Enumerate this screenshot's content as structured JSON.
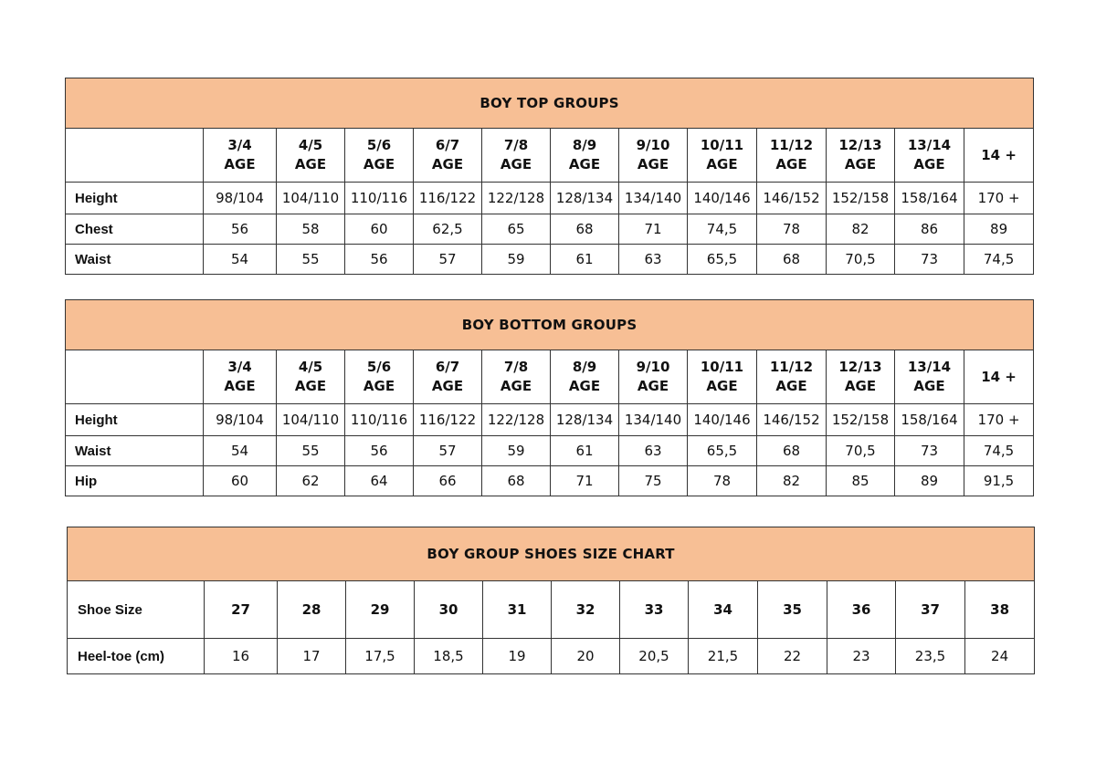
{
  "header_color": "#f7bf95",
  "top": {
    "title": "BOY TOP GROUPS",
    "columns": [
      [
        "3/4",
        "AGE"
      ],
      [
        "4/5",
        "AGE"
      ],
      [
        "5/6",
        "AGE"
      ],
      [
        "6/7",
        "AGE"
      ],
      [
        "7/8",
        "AGE"
      ],
      [
        "8/9",
        "AGE"
      ],
      [
        "9/10",
        "AGE"
      ],
      [
        "10/11",
        "AGE"
      ],
      [
        "11/12",
        "AGE"
      ],
      [
        "12/13",
        "AGE"
      ],
      [
        "13/14",
        "AGE"
      ],
      [
        "14 +",
        ""
      ]
    ],
    "rows": [
      {
        "label": "Height",
        "values": [
          "98/104",
          "104/110",
          "110/116",
          "116/122",
          "122/128",
          "128/134",
          "134/140",
          "140/146",
          "146/152",
          "152/158",
          "158/164",
          "170 +"
        ]
      },
      {
        "label": "Chest",
        "values": [
          "56",
          "58",
          "60",
          "62,5",
          "65",
          "68",
          "71",
          "74,5",
          "78",
          "82",
          "86",
          "89"
        ]
      },
      {
        "label": "Waist",
        "values": [
          "54",
          "55",
          "56",
          "57",
          "59",
          "61",
          "63",
          "65,5",
          "68",
          "70,5",
          "73",
          "74,5"
        ]
      }
    ]
  },
  "bottom": {
    "title": "BOY BOTTOM GROUPS",
    "columns": [
      [
        "3/4",
        "AGE"
      ],
      [
        "4/5",
        "AGE"
      ],
      [
        "5/6",
        "AGE"
      ],
      [
        "6/7",
        "AGE"
      ],
      [
        "7/8",
        "AGE"
      ],
      [
        "8/9",
        "AGE"
      ],
      [
        "9/10",
        "AGE"
      ],
      [
        "10/11",
        "AGE"
      ],
      [
        "11/12",
        "AGE"
      ],
      [
        "12/13",
        "AGE"
      ],
      [
        "13/14",
        "AGE"
      ],
      [
        "14 +",
        ""
      ]
    ],
    "rows": [
      {
        "label": "Height",
        "values": [
          "98/104",
          "104/110",
          "110/116",
          "116/122",
          "122/128",
          "128/134",
          "134/140",
          "140/146",
          "146/152",
          "152/158",
          "158/164",
          "170 +"
        ]
      },
      {
        "label": "Waist",
        "values": [
          "54",
          "55",
          "56",
          "57",
          "59",
          "61",
          "63",
          "65,5",
          "68",
          "70,5",
          "73",
          "74,5"
        ]
      },
      {
        "label": "Hip",
        "values": [
          "60",
          "62",
          "64",
          "66",
          "68",
          "71",
          "75",
          "78",
          "82",
          "85",
          "89",
          "91,5"
        ]
      }
    ]
  },
  "shoes": {
    "title": "BOY GROUP SHOES SIZE CHART",
    "size_label": "Shoe Size",
    "sizes": [
      "27",
      "28",
      "29",
      "30",
      "31",
      "32",
      "33",
      "34",
      "35",
      "36",
      "37",
      "38"
    ],
    "heel_label": "Heel-toe (cm)",
    "heel_toe": [
      "16",
      "17",
      "17,5",
      "18,5",
      "19",
      "20",
      "20,5",
      "21,5",
      "22",
      "23",
      "23,5",
      "24"
    ]
  }
}
